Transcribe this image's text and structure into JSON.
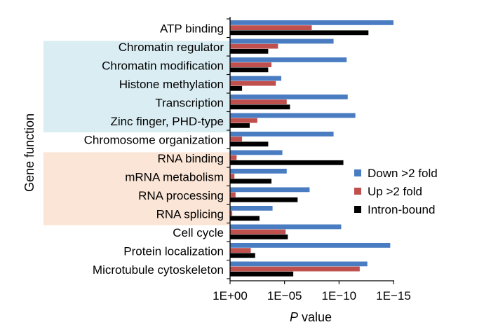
{
  "chart_data": {
    "type": "bar",
    "orientation": "horizontal",
    "scale": "log (P value, 1E+00 to 1E−15)",
    "categories": [
      "ATP binding",
      "Chromatin regulator",
      "Chromatin modification",
      "Histone methylation",
      "Transcription",
      "Zinc finger, PHD-type",
      "Chromosome organization",
      "RNA binding",
      "mRNA metabolism",
      "RNA processing",
      "RNA splicing",
      "Cell cycle",
      "Protein localization",
      "Microtubule cytoskeleton"
    ],
    "series": [
      {
        "name": "Down >2 fold",
        "color": "#4a7cc2",
        "exponents": [
          15.0,
          9.5,
          10.7,
          4.7,
          10.8,
          11.5,
          9.5,
          4.8,
          5.2,
          7.3,
          3.9,
          10.2,
          14.7,
          12.6
        ]
      },
      {
        "name": "Up >2 fold",
        "color": "#c0504d",
        "exponents": [
          7.5,
          4.4,
          3.8,
          4.2,
          5.2,
          2.5,
          1.1,
          0.6,
          0.4,
          0.5,
          0.2,
          5.1,
          1.9,
          11.9
        ]
      },
      {
        "name": "Intron-bound",
        "color": "#000000",
        "exponents": [
          12.7,
          3.5,
          3.5,
          1.1,
          5.5,
          1.8,
          3.5,
          10.4,
          3.8,
          6.2,
          2.7,
          5.3,
          2.3,
          5.8
        ]
      }
    ],
    "xticks": [
      "1E+00",
      "1E−05",
      "1E−10",
      "1E−15"
    ],
    "xlabel_italic": "P",
    "xlabel_rest": " value",
    "ylabel": "Gene function",
    "xlim_exponent": [
      0,
      15
    ],
    "legend_position": "right",
    "highlight_groups": [
      {
        "from": "Chromatin regulator",
        "to": "Zinc finger, PHD-type",
        "color": "#daedf3"
      },
      {
        "from": "RNA binding",
        "to": "RNA splicing",
        "color": "#fbe5d6"
      }
    ]
  }
}
